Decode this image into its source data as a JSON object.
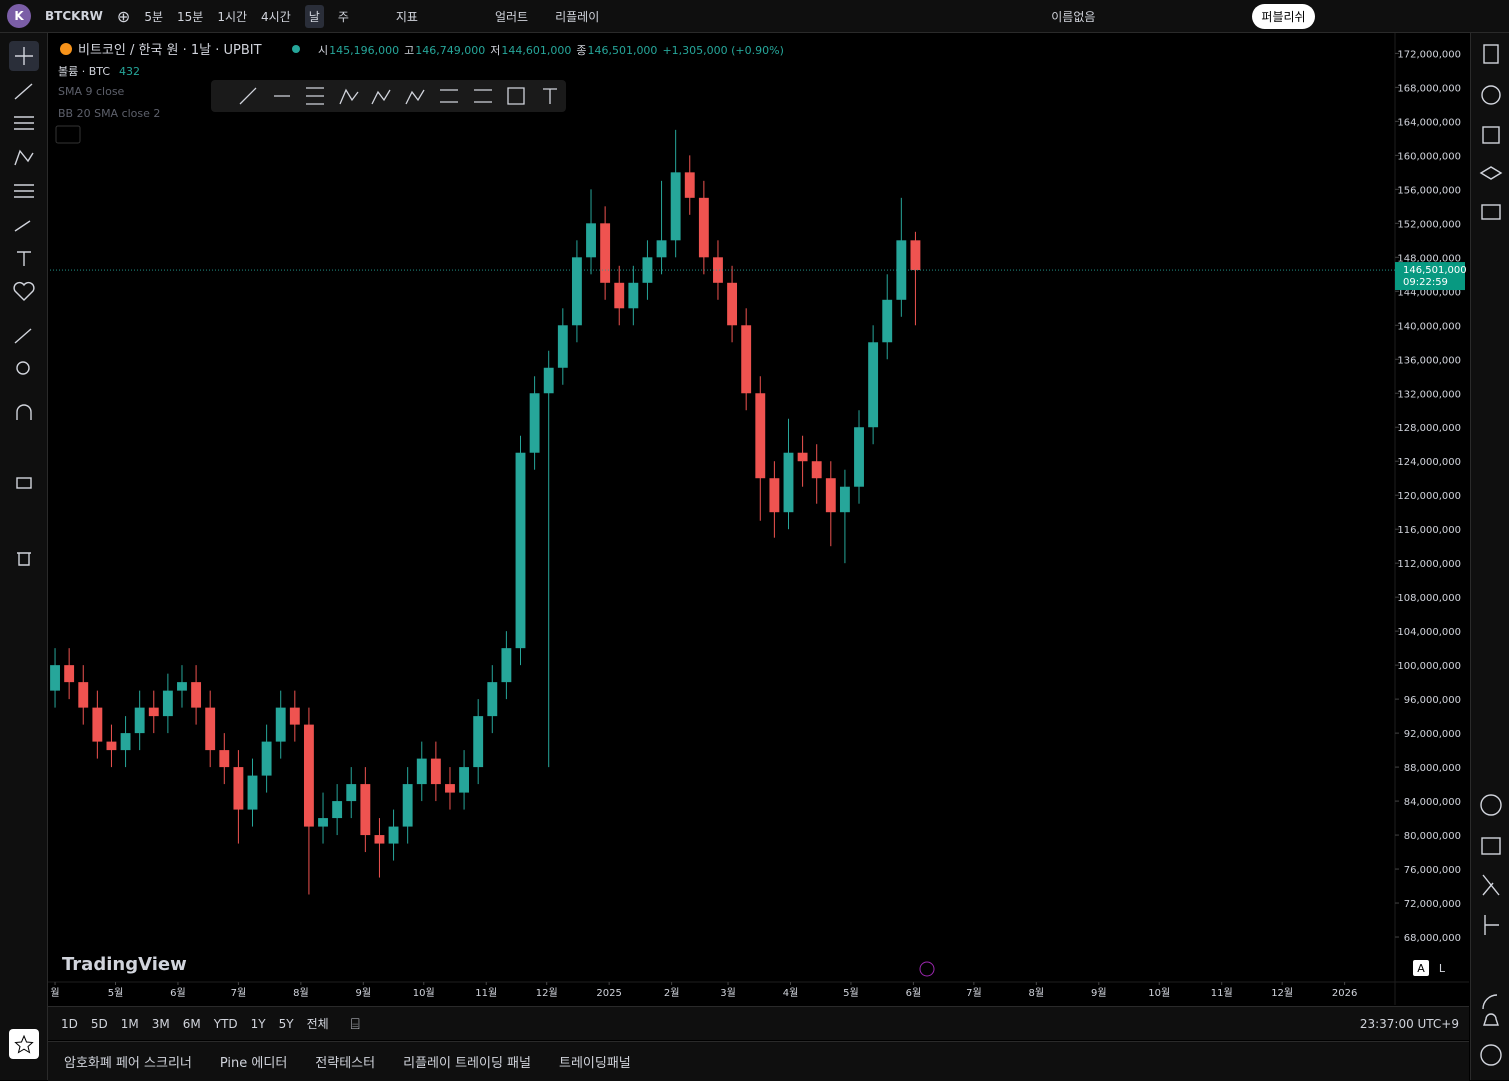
{
  "ui": {
    "top_bar": {
      "logo": "K",
      "symbol": "BTCKRW",
      "intervals": [
        "5분",
        "15분",
        "1시간",
        "4시간",
        "날",
        "주"
      ],
      "indicators": "지표",
      "alert": "얼러트",
      "replay": "리플레이",
      "layout_name": "이름없음",
      "publish": "퍼블리쉬"
    },
    "legend": {
      "title": "비트코인 / 한국 원 · 1날 · UPBIT",
      "ohlc": [
        {
          "label": "시",
          "value": "145,196,000"
        },
        {
          "label": "고",
          "value": "146,749,000"
        },
        {
          "label": "저",
          "value": "144,601,000"
        },
        {
          "label": "종",
          "value": "146,501,000"
        }
      ],
      "change": "+1,305,000 (+0.90%)",
      "volume_label": "볼륨 · BTC",
      "volume_value": "432",
      "indicators": [
        "SMA 9 close",
        "BB 20 SMA close 2"
      ]
    },
    "watermark": "TradingView",
    "scale_modes": [
      "A",
      "L"
    ],
    "periods": [
      "1D",
      "5D",
      "1M",
      "3M",
      "6M",
      "YTD",
      "1Y",
      "5Y",
      "전체"
    ],
    "clock": "23:37:00 UTC+9",
    "tabs": [
      "암호화폐 페어 스크리너",
      "Pine 에디터",
      "전략테스터",
      "리플레이 트레이딩 패널",
      "트레이딩패널"
    ]
  },
  "chart_data": {
    "type": "candlestick",
    "up_color": "#26a69a",
    "down_color": "#ef5350",
    "last_price_label": "146,501,000",
    "countdown": "09:22:59",
    "x": [
      0,
      7,
      14,
      21,
      28,
      35,
      42,
      49,
      56,
      63,
      70,
      77,
      84,
      91,
      98,
      105,
      112,
      119,
      126,
      133,
      140,
      147,
      154,
      161,
      168,
      175,
      182,
      189,
      196,
      203,
      210,
      217,
      224,
      231,
      238,
      245,
      252,
      259,
      266,
      273,
      280,
      287,
      294,
      301,
      308,
      315,
      322,
      329,
      336,
      343,
      350,
      357,
      364,
      371,
      378,
      385,
      392,
      399,
      406,
      413,
      420,
      427
    ],
    "open": [
      97000000,
      100000000,
      98000000,
      95000000,
      91000000,
      90000000,
      92000000,
      95000000,
      94000000,
      97000000,
      98000000,
      95000000,
      90000000,
      88000000,
      83000000,
      87000000,
      91000000,
      95000000,
      93000000,
      81000000,
      82000000,
      84000000,
      86000000,
      80000000,
      79000000,
      81000000,
      86000000,
      89000000,
      86000000,
      85000000,
      88000000,
      94000000,
      98000000,
      102000000,
      125000000,
      132000000,
      135000000,
      140000000,
      148000000,
      152000000,
      145000000,
      142000000,
      145000000,
      148000000,
      150000000,
      158000000,
      155000000,
      148000000,
      145000000,
      140000000,
      132000000,
      122000000,
      118000000,
      125000000,
      124000000,
      122000000,
      118000000,
      121000000,
      128000000,
      138000000,
      143000000,
      150000000
    ],
    "high": [
      102000000,
      102000000,
      100000000,
      97000000,
      93000000,
      94000000,
      97000000,
      97000000,
      99000000,
      100000000,
      100000000,
      97000000,
      92000000,
      90000000,
      89000000,
      93000000,
      97000000,
      97000000,
      95000000,
      85000000,
      86000000,
      88000000,
      88000000,
      82000000,
      83000000,
      88000000,
      91000000,
      91000000,
      88000000,
      90000000,
      96000000,
      100000000,
      104000000,
      127000000,
      134000000,
      137000000,
      142000000,
      150000000,
      156000000,
      154000000,
      147000000,
      147000000,
      150000000,
      157000000,
      163000000,
      160000000,
      157000000,
      150000000,
      147000000,
      142000000,
      134000000,
      124000000,
      129000000,
      127000000,
      126000000,
      124000000,
      123000000,
      130000000,
      140000000,
      146000000,
      155000000,
      151000000
    ],
    "low": [
      95000000,
      96000000,
      93000000,
      89000000,
      88000000,
      88000000,
      90000000,
      92000000,
      92000000,
      95000000,
      93000000,
      88000000,
      86000000,
      79000000,
      81000000,
      85000000,
      89000000,
      91000000,
      73000000,
      79000000,
      80000000,
      82000000,
      78000000,
      75000000,
      77000000,
      79000000,
      84000000,
      84000000,
      83000000,
      83000000,
      86000000,
      92000000,
      96000000,
      100000000,
      123000000,
      88000000,
      133000000,
      138000000,
      146000000,
      143000000,
      140000000,
      140000000,
      143000000,
      146000000,
      148000000,
      153000000,
      146000000,
      143000000,
      138000000,
      130000000,
      117000000,
      115000000,
      116000000,
      121000000,
      119000000,
      114000000,
      112000000,
      119000000,
      126000000,
      136000000,
      141000000,
      140000000
    ],
    "close": [
      100000000,
      98000000,
      95000000,
      91000000,
      90000000,
      92000000,
      95000000,
      94000000,
      97000000,
      98000000,
      95000000,
      90000000,
      88000000,
      83000000,
      87000000,
      91000000,
      95000000,
      93000000,
      81000000,
      82000000,
      84000000,
      86000000,
      80000000,
      79000000,
      81000000,
      86000000,
      89000000,
      86000000,
      85000000,
      88000000,
      94000000,
      98000000,
      102000000,
      125000000,
      132000000,
      135000000,
      140000000,
      148000000,
      152000000,
      145000000,
      142000000,
      145000000,
      148000000,
      150000000,
      158000000,
      155000000,
      148000000,
      145000000,
      140000000,
      132000000,
      122000000,
      118000000,
      125000000,
      124000000,
      122000000,
      118000000,
      121000000,
      128000000,
      138000000,
      143000000,
      150000000,
      146501000
    ],
    "xlim": [
      -2.5,
      665
    ],
    "xticks": [
      {
        "value": 0,
        "label": "월"
      },
      {
        "value": 30,
        "label": "5월"
      },
      {
        "value": 61,
        "label": "6월"
      },
      {
        "value": 91,
        "label": "7월"
      },
      {
        "value": 122,
        "label": "8월"
      },
      {
        "value": 153,
        "label": "9월"
      },
      {
        "value": 183,
        "label": "10월"
      },
      {
        "value": 214,
        "label": "11월"
      },
      {
        "value": 244,
        "label": "12월"
      },
      {
        "value": 275,
        "label": "2025"
      },
      {
        "value": 306,
        "label": "2월"
      },
      {
        "value": 334,
        "label": "3월"
      },
      {
        "value": 365,
        "label": "4월"
      },
      {
        "value": 395,
        "label": "5월"
      },
      {
        "value": 426,
        "label": "6월"
      },
      {
        "value": 456,
        "label": "7월"
      },
      {
        "value": 487,
        "label": "8월"
      },
      {
        "value": 518,
        "label": "9월"
      },
      {
        "value": 548,
        "label": "10월"
      },
      {
        "value": 579,
        "label": "11월"
      },
      {
        "value": 609,
        "label": "12월"
      },
      {
        "value": 640,
        "label": "2026"
      }
    ],
    "ylim": [
      60000000,
      174400000
    ],
    "yticks": [
      {
        "value": 68000000,
        "label": "68,000,000"
      },
      {
        "value": 72000000,
        "label": "72,000,000"
      },
      {
        "value": 76000000,
        "label": "76,000,000"
      },
      {
        "value": 80000000,
        "label": "80,000,000"
      },
      {
        "value": 84000000,
        "label": "84,000,000"
      },
      {
        "value": 88000000,
        "label": "88,000,000"
      },
      {
        "value": 92000000,
        "label": "92,000,000"
      },
      {
        "value": 96000000,
        "label": "96,000,000"
      },
      {
        "value": 100000000,
        "label": "100,000,000"
      },
      {
        "value": 104000000,
        "label": "104,000,000"
      },
      {
        "value": 108000000,
        "label": "108,000,000"
      },
      {
        "value": 112000000,
        "label": "112,000,000"
      },
      {
        "value": 116000000,
        "label": "116,000,000"
      },
      {
        "value": 120000000,
        "label": "120,000,000"
      },
      {
        "value": 124000000,
        "label": "124,000,000"
      },
      {
        "value": 128000000,
        "label": "128,000,000"
      },
      {
        "value": 132000000,
        "label": "132,000,000"
      },
      {
        "value": 136000000,
        "label": "136,000,000"
      },
      {
        "value": 140000000,
        "label": "140,000,000"
      },
      {
        "value": 144000000,
        "label": "144,000,000"
      },
      {
        "value": 148000000,
        "label": "148,000,000"
      },
      {
        "value": 152000000,
        "label": "152,000,000"
      },
      {
        "value": 156000000,
        "label": "156,000,000"
      },
      {
        "value": 160000000,
        "label": "160,000,000"
      },
      {
        "value": 164000000,
        "label": "164,000,000"
      },
      {
        "value": 168000000,
        "label": "168,000,000"
      },
      {
        "value": 172000000,
        "label": "172,000,000"
      }
    ],
    "grid": false
  }
}
